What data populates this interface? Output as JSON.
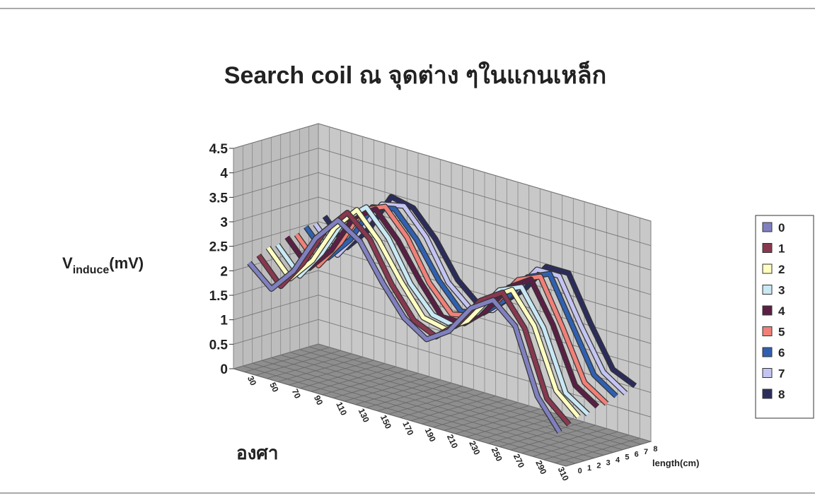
{
  "chart_data": {
    "type": "line3d",
    "title": "Search coil ณ จุดต่าง ๆในแกนเหล็ก",
    "y_label": {
      "main": "V",
      "subscript": "induce",
      "unit": "(mV)"
    },
    "x_label": "องศา",
    "depth_label": "length(cm)",
    "categories": [
      30,
      50,
      70,
      90,
      110,
      130,
      150,
      170,
      190,
      210,
      230,
      250,
      270,
      290,
      310
    ],
    "ylim": [
      0,
      4.5
    ],
    "yticks": [
      0,
      0.5,
      1,
      1.5,
      2,
      2.5,
      3,
      3.5,
      4,
      4.5
    ],
    "grid": true,
    "legend": "right",
    "series": [
      {
        "name": "0",
        "color": "#8080c0",
        "values": [
          2.2,
          1.8,
          2.3,
          3.1,
          3.6,
          3.3,
          2.6,
          2.0,
          1.7,
          2.0,
          2.6,
          2.9,
          2.5,
          1.2,
          0.6
        ]
      },
      {
        "name": "1",
        "color": "#88384f",
        "values": [
          2.3,
          1.8,
          2.4,
          3.2,
          3.7,
          3.3,
          2.5,
          1.9,
          1.7,
          2.1,
          2.7,
          3.0,
          2.4,
          1.1,
          0.7
        ]
      },
      {
        "name": "2",
        "color": "#ffffc0",
        "values": [
          2.4,
          1.9,
          2.4,
          3.2,
          3.7,
          3.2,
          2.5,
          1.9,
          1.8,
          2.1,
          2.7,
          3.0,
          2.4,
          1.2,
          0.8
        ]
      },
      {
        "name": "3",
        "color": "#c8e8f4",
        "values": [
          2.4,
          1.9,
          2.5,
          3.3,
          3.7,
          3.2,
          2.4,
          1.9,
          1.8,
          2.2,
          2.8,
          3.0,
          2.3,
          1.1,
          0.8
        ]
      },
      {
        "name": "4",
        "color": "#5a1f44",
        "values": [
          2.5,
          2.0,
          2.5,
          3.3,
          3.6,
          3.1,
          2.4,
          1.8,
          1.8,
          2.2,
          2.8,
          3.1,
          2.3,
          1.2,
          0.9
        ]
      },
      {
        "name": "5",
        "color": "#f08078",
        "values": [
          2.5,
          2.0,
          2.6,
          3.4,
          3.6,
          3.1,
          2.3,
          1.8,
          1.9,
          2.3,
          2.9,
          3.1,
          2.2,
          1.2,
          0.9
        ]
      },
      {
        "name": "6",
        "color": "#3060b0",
        "values": [
          2.6,
          2.1,
          2.6,
          3.4,
          3.5,
          3.0,
          2.3,
          1.8,
          1.9,
          2.3,
          2.9,
          3.1,
          2.2,
          1.3,
          1.0
        ]
      },
      {
        "name": "7",
        "color": "#c4c4f4",
        "values": [
          2.6,
          2.1,
          2.7,
          3.4,
          3.5,
          3.0,
          2.2,
          1.8,
          1.9,
          2.4,
          3.0,
          3.0,
          2.1,
          1.3,
          1.0
        ]
      },
      {
        "name": "8",
        "color": "#2c2c5c",
        "values": [
          2.7,
          2.2,
          2.7,
          3.5,
          3.4,
          2.9,
          2.2,
          1.8,
          2.0,
          2.4,
          3.0,
          3.0,
          2.1,
          1.3,
          1.1
        ]
      }
    ]
  }
}
